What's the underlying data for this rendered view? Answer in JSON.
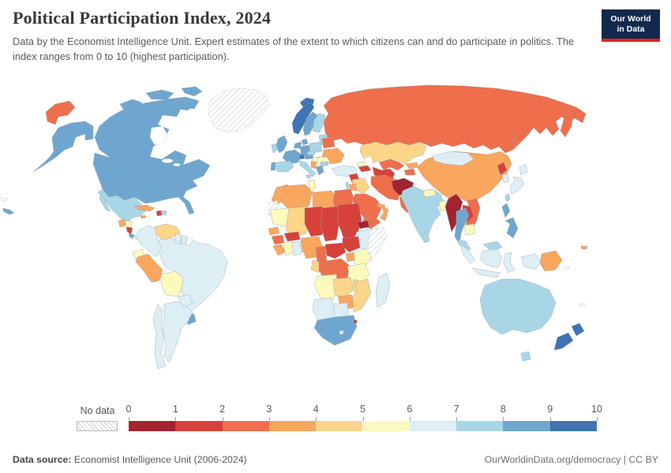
{
  "header": {
    "title": "Political Participation Index, 2024",
    "subtitle": "Data by the Economist Intelligence Unit. Expert estimates of the extent to which citizens can and do participate in politics. The index ranges from 0 to 10 (highest participation).",
    "logo_line1": "Our World",
    "logo_line2": "in Data"
  },
  "legend": {
    "no_data_label": "No data",
    "ticks": [
      "0",
      "1",
      "2",
      "3",
      "4",
      "5",
      "6",
      "7",
      "8",
      "9",
      "10"
    ]
  },
  "footer": {
    "source_label": "Data source:",
    "source_text": " Economist Intelligence Unit (2006-2024)",
    "right_text": "OurWorldinData.org/democracy | CC BY"
  },
  "chart_data": {
    "type": "choropleth",
    "title": "Political Participation Index, 2024",
    "unit": "index",
    "range": [
      0,
      10
    ],
    "band_colors": [
      "#A2242E",
      "#D6423A",
      "#EF6E4B",
      "#F9A65E",
      "#FBD588",
      "#FCF9BC",
      "#DDEEF5",
      "#A9D6E7",
      "#6FA6CF",
      "#3E74B4"
    ],
    "no_data_style": "white-diagonal-hatch",
    "values": {
      "united-states": 8,
      "canada": 8,
      "greenland": "no_data",
      "iceland": 9,
      "mexico": 7,
      "cuba": 3,
      "jamaica": 3,
      "haiti": 1,
      "dominican-republic": 7,
      "guatemala": 3,
      "honduras": 5,
      "nicaragua": 1,
      "costa-rica": 8,
      "panama": 6,
      "colombia": 6,
      "venezuela": 4,
      "guyana": 6,
      "suriname": 6,
      "french-guiana": "no_data",
      "ecuador": 5,
      "peru": 3,
      "bolivia": 5,
      "brazil": 6,
      "paraguay": 6,
      "uruguay": 8,
      "argentina": 6,
      "chile": 6,
      "norway": 9,
      "sweden": 8,
      "finland": 7,
      "denmark": 8,
      "baltic-states": 7,
      "uk": 8,
      "ireland": 7,
      "netherlands-belgium": 8,
      "germany": 8,
      "poland": 7,
      "belarus": 2,
      "ukraine": 3,
      "france": 8,
      "spain": 7,
      "portugal": 8,
      "switzerland": 9,
      "austria": 8,
      "czechia": 7,
      "hungary": 5,
      "romania": 5,
      "serbia": 3,
      "italy": 7,
      "greece": 8,
      "bulgaria": 7,
      "turkey": 6,
      "russia": 2,
      "kazakhstan": 4,
      "uzbekistan": 2,
      "turkmenistan": 1,
      "kyrgyzstan": 3,
      "tajikistan": 2,
      "georgia": 5,
      "armenia-azerbaijan": 1,
      "syria": 1,
      "israel": 7,
      "jordan": 3,
      "iraq": 4,
      "iran": 2,
      "afghanistan": 0,
      "pakistan": 2,
      "saudi-arabia": 2,
      "yemen": 2,
      "oman": 3,
      "uae": 3,
      "morocco": 3,
      "western-sahara": "no_data",
      "algeria": 3,
      "tunisia": 5,
      "libya": 3,
      "egypt": 2,
      "mauritania": 5,
      "mali": 4,
      "niger": 1,
      "chad": 1,
      "sudan": 1,
      "eritrea": 0,
      "ethiopia": 6,
      "somalia": "no_data",
      "senegal": 3,
      "guinea": 2,
      "sierra-leone-liberia": 3,
      "cote-divoire": 5,
      "ghana": 6,
      "togo-benin": 3,
      "burkina-faso": 1,
      "nigeria": 3,
      "cameroon": 2,
      "central-african-republic": 1,
      "south-sudan": 1,
      "drc": 2,
      "gabon": 4,
      "congo": 2,
      "uganda": 3,
      "kenya": 5,
      "tanzania": 5,
      "angola": 5,
      "zambia": 4,
      "malawi": 4,
      "mozambique": 4,
      "zimbabwe": 3,
      "botswana": 6,
      "namibia": 6,
      "south-africa": 8,
      "eswatini": 1,
      "lesotho": 6,
      "madagascar": 6,
      "china": 3,
      "mongolia": 6,
      "north-korea": 1,
      "south-korea": 6,
      "japan": 6,
      "taiwan": 7,
      "india": 7,
      "nepal": 5,
      "bangladesh": 5,
      "sri-lanka": 7,
      "myanmar": 0,
      "thailand": 8,
      "laos": 1,
      "vietnam": 2,
      "cambodia": 5,
      "malaysia": 7,
      "indonesia": 6,
      "timor-leste": 5,
      "philippines": 8,
      "papua-new-guinea": 3,
      "fiji": 3,
      "solomon-islands": "no_data",
      "new-caledonia": "no_data",
      "pacific-islands": "no_data",
      "australia": 7,
      "new-zealand": 9
    }
  }
}
